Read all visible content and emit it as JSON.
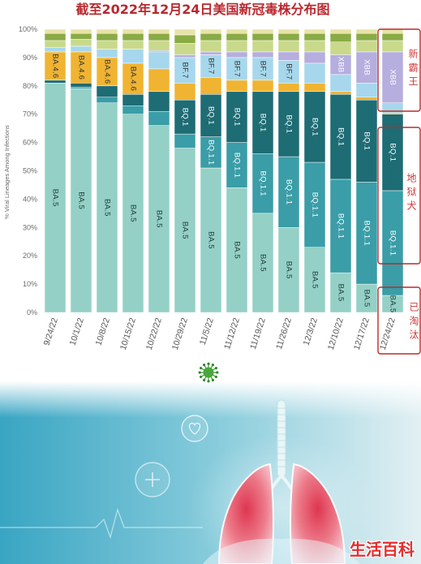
{
  "title": "截至2022年12月24日美国新冠毒株分布图",
  "chart_data": {
    "type": "bar",
    "stacked": true,
    "ylabel": "% Viral Lineages Among Infections",
    "ylim": [
      0,
      100
    ],
    "yticks": [
      0,
      10,
      20,
      30,
      40,
      50,
      60,
      70,
      80,
      90,
      100
    ],
    "ytick_labels": [
      "0%",
      "10%",
      "20%",
      "30%",
      "40%",
      "50%",
      "60%",
      "70%",
      "80%",
      "90%",
      "100%"
    ],
    "grid": false,
    "categories": [
      "9/24/22",
      "10/1/22",
      "10/8/22",
      "10/15/22",
      "10/22/22",
      "10/29/22",
      "11/5/22",
      "11/12/22",
      "11/19/22",
      "11/26/22",
      "12/3/22",
      "12/10/22",
      "12/17/22",
      "12/24/22"
    ],
    "series": [
      {
        "name": "BA.5",
        "color": "#94d0c6",
        "label_color": "#1f3a3a",
        "values": [
          81,
          79,
          74,
          70,
          66,
          58,
          51,
          44,
          35,
          30,
          23,
          14,
          10,
          6
        ],
        "label_shown": [
          true,
          true,
          true,
          true,
          true,
          true,
          true,
          true,
          true,
          true,
          true,
          true,
          true,
          true
        ]
      },
      {
        "name": "BQ.1.1",
        "color": "#3a9da7",
        "label_color": "#ffffff",
        "values": [
          0,
          0.5,
          2,
          3,
          5,
          5,
          11,
          16,
          21,
          25,
          30,
          33,
          36,
          37
        ],
        "label_shown": [
          false,
          false,
          false,
          false,
          false,
          false,
          true,
          true,
          true,
          true,
          true,
          true,
          true,
          true
        ]
      },
      {
        "name": "BQ.1",
        "color": "#1e6c74",
        "label_color": "#ffffff",
        "values": [
          1,
          1.5,
          4,
          4,
          7,
          12,
          15,
          18,
          22,
          23,
          25,
          30,
          29,
          27
        ],
        "label_shown": [
          false,
          false,
          false,
          false,
          false,
          true,
          true,
          true,
          true,
          true,
          true,
          true,
          true,
          true
        ]
      },
      {
        "name": "BA.4.6",
        "color": "#f0b432",
        "label_color": "#333333",
        "values": [
          10,
          11,
          10,
          11,
          8,
          6,
          6,
          4,
          4,
          3,
          3,
          1,
          1,
          0.5
        ],
        "label_shown": [
          true,
          true,
          true,
          true,
          false,
          false,
          false,
          false,
          false,
          false,
          false,
          false,
          false,
          false
        ]
      },
      {
        "name": "BF.7",
        "color": "#a6d7ec",
        "label_color": "#333333",
        "values": [
          1.5,
          2,
          3,
          5,
          6,
          9,
          8,
          8,
          8,
          8,
          7,
          6,
          5,
          3.5
        ],
        "label_shown": [
          false,
          false,
          false,
          false,
          false,
          true,
          true,
          true,
          true,
          true,
          false,
          false,
          false,
          false
        ]
      },
      {
        "name": "XBB",
        "color": "#b5aede",
        "label_color": "#ffffff",
        "values": [
          0,
          0,
          0,
          0,
          0.5,
          1,
          1,
          2,
          2,
          3,
          4,
          7,
          11,
          18
        ],
        "label_shown": [
          false,
          false,
          false,
          false,
          false,
          false,
          false,
          false,
          false,
          false,
          false,
          true,
          true,
          true
        ]
      },
      {
        "color": "#c9d98b",
        "values": [
          2.5,
          2.5,
          3,
          3,
          3.5,
          4,
          4,
          4,
          4,
          4,
          4,
          4.5,
          4,
          4
        ]
      },
      {
        "color": "#8aab45",
        "values": [
          2.5,
          2,
          2.5,
          2.5,
          2.5,
          3,
          2.5,
          2.5,
          2.5,
          2.5,
          2.5,
          3,
          2.5,
          2.5
        ]
      },
      {
        "color": "#e9e3a6",
        "values": [
          1.5,
          1.5,
          1.5,
          1.5,
          1.5,
          2,
          1.5,
          1.5,
          1.5,
          1.5,
          1.5,
          1.5,
          1.5,
          1.5
        ]
      }
    ]
  },
  "annotations": [
    {
      "text": "新霸王"
    },
    {
      "text": "地狱犬"
    },
    {
      "text": "已淘汰"
    }
  ],
  "watermark": "生活百科"
}
